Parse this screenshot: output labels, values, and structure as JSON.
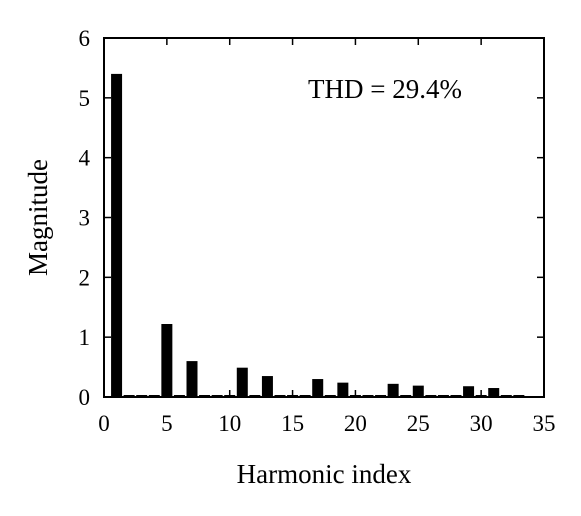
{
  "chart_data": {
    "type": "bar",
    "x": [
      1,
      5,
      7,
      11,
      13,
      17,
      19,
      23,
      25,
      29,
      31
    ],
    "values": [
      5.4,
      1.22,
      0.6,
      0.49,
      0.35,
      0.3,
      0.24,
      0.22,
      0.19,
      0.18,
      0.15
    ],
    "title": "",
    "xlabel": "Harmonic index",
    "ylabel": "Magnitude",
    "xlim": [
      0,
      35
    ],
    "ylim": [
      0,
      6
    ],
    "xticks": [
      "0",
      "5",
      "10",
      "15",
      "20",
      "25",
      "30",
      "35"
    ],
    "yticks": [
      "0",
      "1",
      "2",
      "3",
      "4",
      "5",
      "6"
    ],
    "annotation": "THD = 29.4%",
    "baseline_dashes": true,
    "grid": false,
    "bar_color": "#000000"
  }
}
